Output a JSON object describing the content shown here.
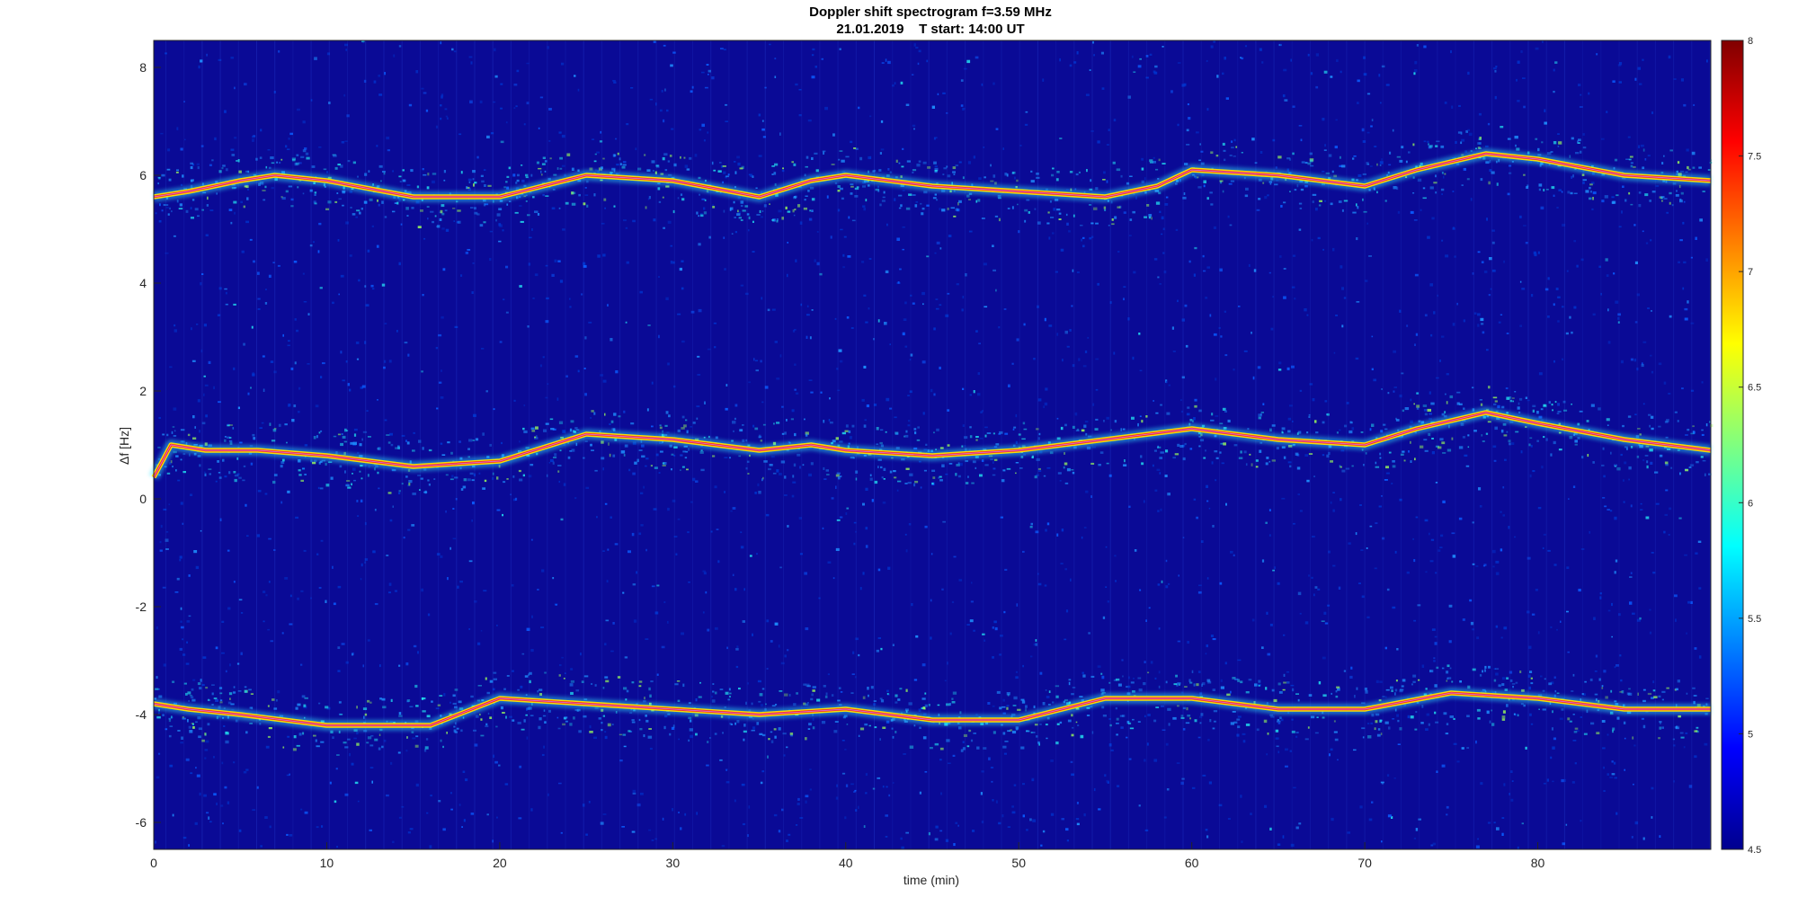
{
  "chart_data": {
    "type": "heatmap",
    "title": "Doppler shift spectrogram f=3.59 MHz",
    "subtitle": "21.01.2019    T start: 14:00 UT",
    "xlabel": "time (min)",
    "ylabel": "Δf [Hz]",
    "xlim": [
      0,
      90
    ],
    "ylim": [
      -6.5,
      8.5
    ],
    "xticks": [
      0,
      10,
      20,
      30,
      40,
      50,
      60,
      70,
      80
    ],
    "yticks": [
      -6,
      -4,
      -2,
      0,
      2,
      4,
      6,
      8
    ],
    "colorbar": {
      "colormap": "jet",
      "range": [
        4.5,
        8
      ],
      "ticks": [
        4.5,
        5,
        5.5,
        6,
        6.5,
        7,
        7.5,
        8
      ]
    },
    "grid": false,
    "series": [
      {
        "x": [
          0,
          2,
          5,
          7,
          10,
          15,
          20,
          25,
          30,
          35,
          38,
          40,
          45,
          50,
          55,
          58,
          60,
          65,
          70,
          73,
          77,
          80,
          85,
          90
        ],
        "y": [
          5.6,
          5.7,
          5.9,
          6.0,
          5.9,
          5.6,
          5.6,
          6.0,
          5.9,
          5.6,
          5.9,
          6.0,
          5.8,
          5.7,
          5.6,
          5.8,
          6.1,
          6.0,
          5.8,
          6.1,
          6.4,
          6.3,
          6.0,
          5.9
        ]
      },
      {
        "x": [
          0,
          1,
          3,
          6,
          10,
          15,
          20,
          25,
          30,
          35,
          38,
          40,
          45,
          50,
          55,
          60,
          65,
          70,
          73,
          77,
          80,
          85,
          90
        ],
        "y": [
          0.4,
          1.0,
          0.9,
          0.9,
          0.8,
          0.6,
          0.7,
          1.2,
          1.1,
          0.9,
          1.0,
          0.9,
          0.8,
          0.9,
          1.1,
          1.3,
          1.1,
          1.0,
          1.3,
          1.6,
          1.4,
          1.1,
          0.9
        ]
      },
      {
        "x": [
          0,
          2,
          5,
          10,
          16,
          20,
          25,
          30,
          35,
          40,
          45,
          50,
          55,
          60,
          65,
          70,
          75,
          80,
          85,
          90
        ],
        "y": [
          -3.8,
          -3.9,
          -4.0,
          -4.2,
          -4.2,
          -3.7,
          -3.8,
          -3.9,
          -4.0,
          -3.9,
          -4.1,
          -4.1,
          -3.7,
          -3.7,
          -3.9,
          -3.9,
          -3.6,
          -3.7,
          -3.9,
          -3.9
        ]
      }
    ]
  }
}
